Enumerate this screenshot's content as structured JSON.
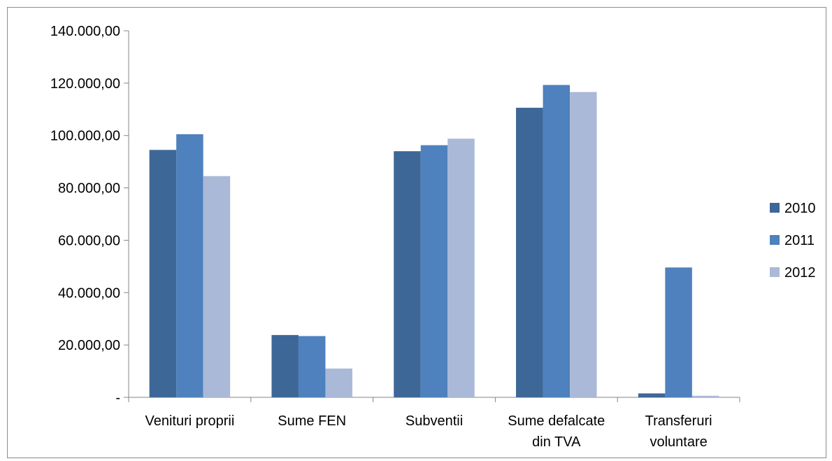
{
  "chart_data": {
    "type": "bar",
    "title": "",
    "xlabel": "",
    "ylabel": "",
    "categories": [
      [
        "Venituri proprii"
      ],
      [
        "Sume FEN"
      ],
      [
        "Subventii"
      ],
      [
        "Sume defalcate",
        "din TVA"
      ],
      [
        "Transferuri",
        "voluntare"
      ]
    ],
    "series": [
      {
        "name": "2010",
        "color": "#3d6797",
        "values": [
          94500,
          23800,
          94000,
          110600,
          1500
        ]
      },
      {
        "name": "2011",
        "color": "#4e81bd",
        "values": [
          100500,
          23400,
          96300,
          119300,
          49600
        ]
      },
      {
        "name": "2012",
        "color": "#aab9d8",
        "values": [
          84500,
          11000,
          98800,
          116600,
          600
        ]
      }
    ],
    "ylim": [
      0,
      140000
    ],
    "yticks": [
      {
        "value": 0,
        "label": "-"
      },
      {
        "value": 20000,
        "label": "20.000,00"
      },
      {
        "value": 40000,
        "label": "40.000,00"
      },
      {
        "value": 60000,
        "label": "60.000,00"
      },
      {
        "value": 80000,
        "label": "80.000,00"
      },
      {
        "value": 100000,
        "label": "100.000,00"
      },
      {
        "value": 120000,
        "label": "120.000,00"
      },
      {
        "value": 140000,
        "label": "140.000,00"
      }
    ],
    "grid": false,
    "legend_position": "right"
  }
}
